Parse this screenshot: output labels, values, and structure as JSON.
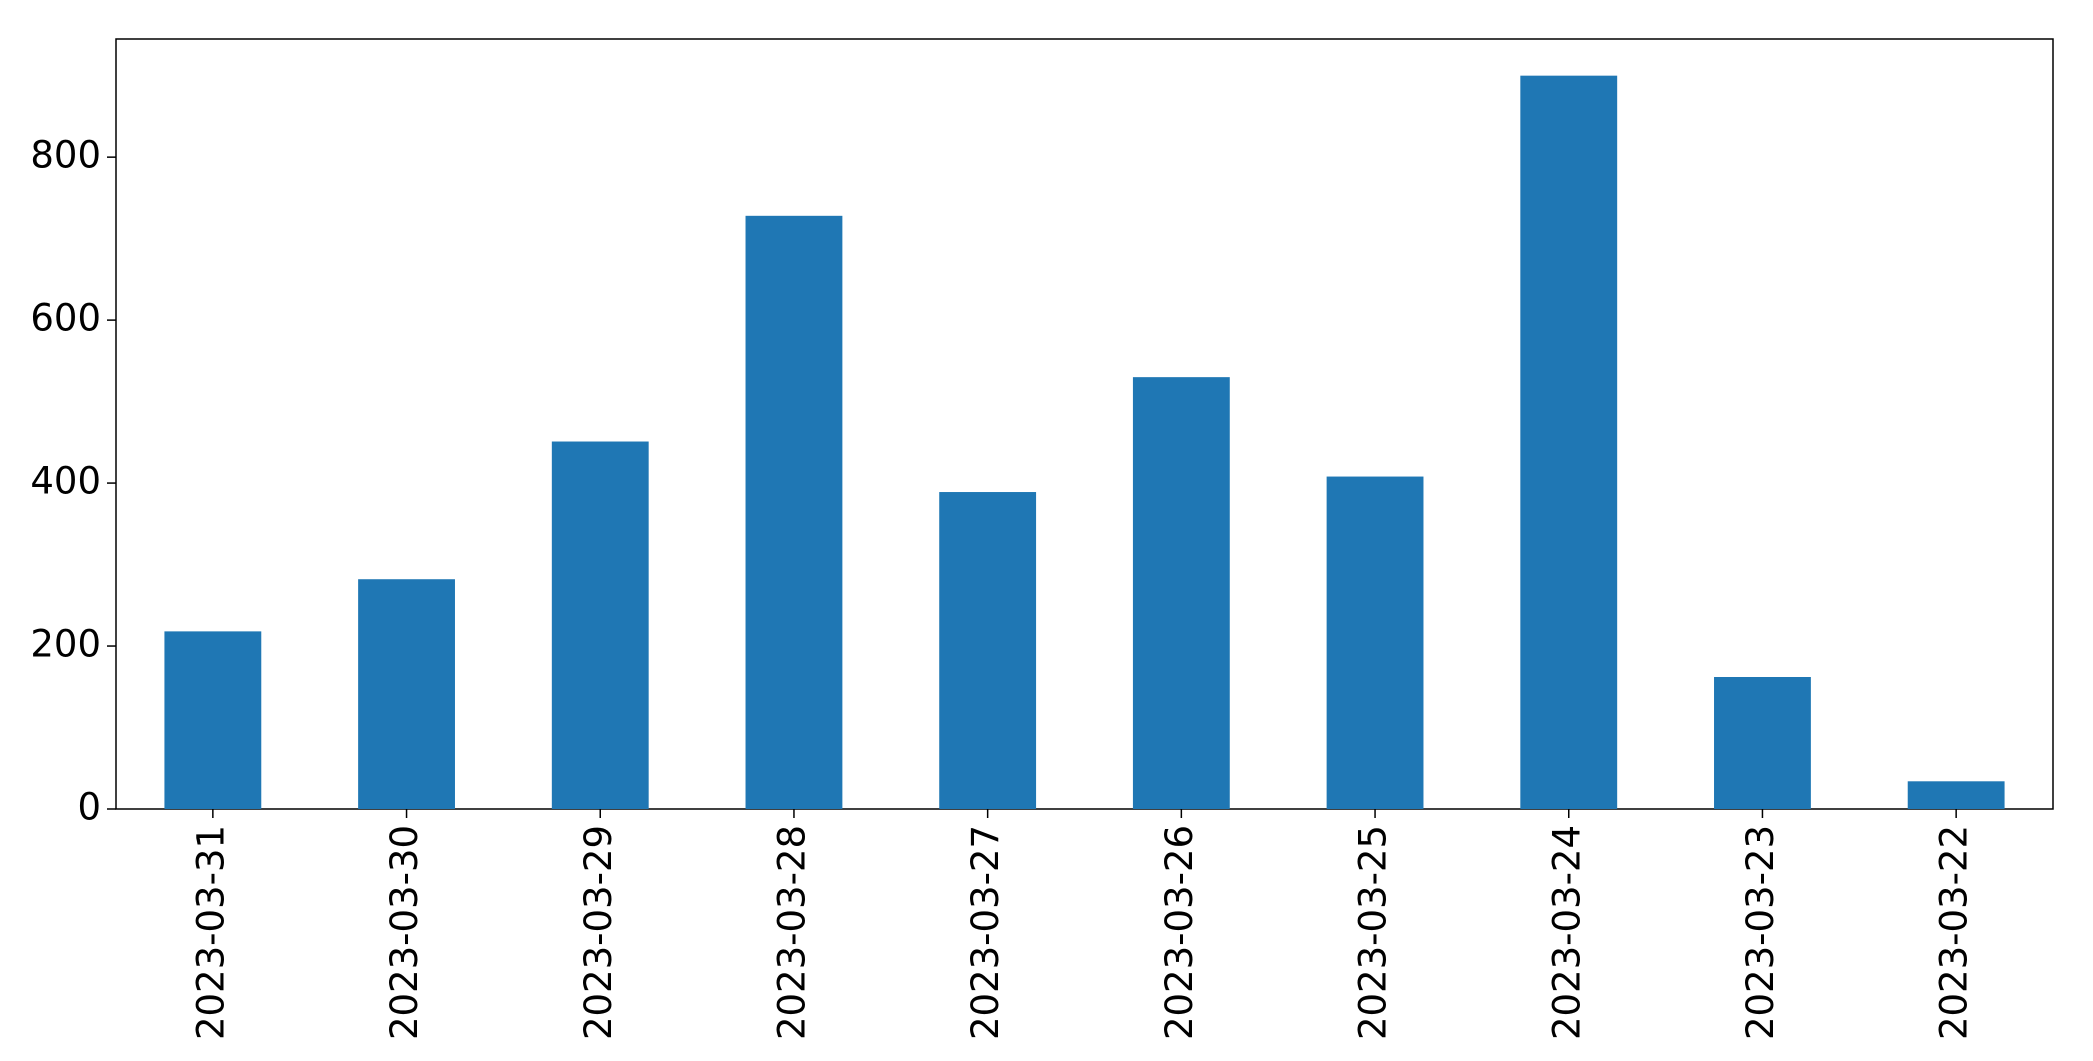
{
  "chart_data": {
    "type": "bar",
    "categories": [
      "2023-03-31",
      "2023-03-30",
      "2023-03-29",
      "2023-03-28",
      "2023-03-27",
      "2023-03-26",
      "2023-03-25",
      "2023-03-24",
      "2023-03-23",
      "2023-03-22"
    ],
    "values": [
      218,
      282,
      451,
      728,
      389,
      530,
      408,
      900,
      162,
      34
    ],
    "color": "#1f77b4",
    "ylim": [
      0,
      945
    ],
    "yticks": [
      0,
      200,
      400,
      600,
      800
    ],
    "grid": false
  }
}
